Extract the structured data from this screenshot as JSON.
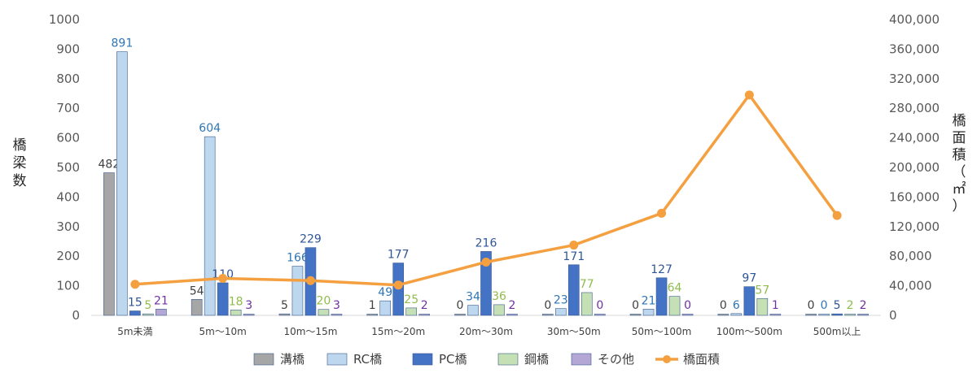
{
  "chart_data": {
    "type": "bar",
    "categories": [
      "5m未満",
      "5m～10m",
      "10m～15m",
      "15m～20m",
      "20m～30m",
      "30m～50m",
      "50m～100m",
      "100m～500m",
      "500m以上"
    ],
    "series": [
      {
        "name": "溝橋",
        "type": "bar",
        "axis": "left",
        "color": "#a6a6a6",
        "label_color": "#404040",
        "values": [
          482,
          54,
          5,
          1,
          0,
          0,
          0,
          0,
          0
        ]
      },
      {
        "name": "RC橋",
        "type": "bar",
        "axis": "left",
        "color": "#bdd7ee",
        "label_color": "#2e75b6",
        "values": [
          891,
          604,
          166,
          49,
          34,
          23,
          21,
          6,
          0
        ]
      },
      {
        "name": "PC橋",
        "type": "bar",
        "axis": "left",
        "color": "#4472c4",
        "label_color": "#2f5597",
        "values": [
          15,
          110,
          229,
          177,
          216,
          171,
          127,
          97,
          5
        ]
      },
      {
        "name": "鋼橋",
        "type": "bar",
        "axis": "left",
        "color": "#c5e0b4",
        "label_color": "#8fbc4a",
        "values": [
          5,
          18,
          20,
          25,
          36,
          77,
          64,
          57,
          2
        ]
      },
      {
        "name": "その他",
        "type": "bar",
        "axis": "left",
        "color": "#b4a7d6",
        "label_color": "#7030a0",
        "values": [
          21,
          3,
          3,
          2,
          2,
          0,
          0,
          1,
          2
        ]
      },
      {
        "name": "橋面積",
        "type": "line",
        "axis": "right",
        "color": "#f4a040",
        "values": [
          42000,
          50000,
          47000,
          41000,
          72000,
          95000,
          138000,
          298000,
          135000
        ]
      }
    ],
    "y_left": {
      "label": "橋梁数",
      "min": 0,
      "max": 1000,
      "ticks": [
        "0",
        "100",
        "200",
        "300",
        "400",
        "500",
        "600",
        "700",
        "800",
        "900",
        "1000"
      ]
    },
    "y_right": {
      "label": "橋面積（㎡）",
      "min": 0,
      "max": 400000,
      "ticks": [
        "0",
        "40,000",
        "80,000",
        "120,000",
        "160,000",
        "200,000",
        "240,000",
        "280,000",
        "320,000",
        "360,000",
        "400,000"
      ]
    },
    "legend": {
      "position": "bottom",
      "items": [
        "溝橋",
        "RC橋",
        "PC橋",
        "鋼橋",
        "その他",
        "橋面積"
      ]
    },
    "grid": false
  }
}
